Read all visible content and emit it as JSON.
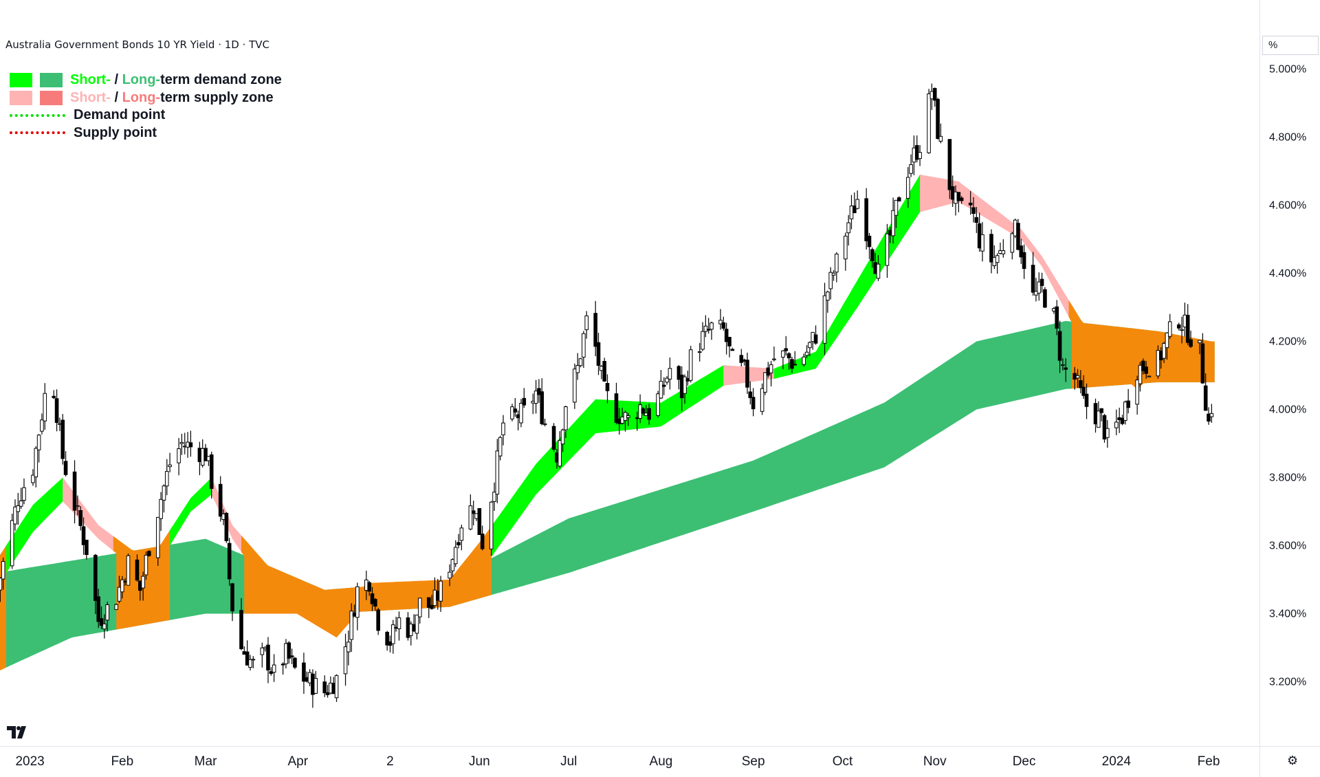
{
  "header": {
    "title": "Australia Government Bonds 10 YR Yield · 1D · TVC"
  },
  "legend": {
    "items": [
      {
        "short": "Short-",
        "sep": " / ",
        "long": "Long-",
        "rest": "term demand zone",
        "short_color": "#00ff00",
        "long_color": "#3cbf73"
      },
      {
        "short": "Short-",
        "sep": " / ",
        "long": "Long-",
        "rest": "term supply zone",
        "short_color": "#ffb3b3",
        "long_color": "#f77b7b"
      },
      {
        "label": "Demand point",
        "color": "#00e000"
      },
      {
        "label": "Supply point",
        "color": "#e00000"
      }
    ]
  },
  "price_axis": {
    "unit_label": "%"
  },
  "branding": {
    "logo": "tradingview-logo-icon"
  },
  "controls": {
    "settings_icon": "gear-icon"
  },
  "colors": {
    "demand_short": "#00ff00",
    "demand_long": "#3cbf73",
    "supply_short": "#ffb3b3",
    "supply_long": "#f77b7b",
    "overlap": "#f48a0c",
    "candle": "#000000"
  },
  "chart_data": {
    "type": "candlestick",
    "title": "Australia Government Bonds 10 YR Yield · 1D · TVC",
    "y_unit": "%",
    "ylim": [
      3.0,
      5.1
    ],
    "y_ticks": [
      3.2,
      3.4,
      3.6,
      3.8,
      4.0,
      4.2,
      4.4,
      4.6,
      4.8,
      5.0
    ],
    "y_tick_labels": [
      "3.200%",
      "3.400%",
      "3.600%",
      "3.800%",
      "4.000%",
      "4.200%",
      "4.400%",
      "4.600%",
      "4.800%",
      "5.000%"
    ],
    "x_range": [
      "2022-12-21",
      "2024-02-07"
    ],
    "x_ticks": [
      {
        "date": "2023-01-01",
        "label": "2023"
      },
      {
        "date": "2023-02-01",
        "label": "Feb"
      },
      {
        "date": "2023-03-01",
        "label": "Mar"
      },
      {
        "date": "2023-04-01",
        "label": "Apr"
      },
      {
        "date": "2023-05-02",
        "label": "2"
      },
      {
        "date": "2023-06-01",
        "label": "Jun"
      },
      {
        "date": "2023-07-01",
        "label": "Jul"
      },
      {
        "date": "2023-08-01",
        "label": "Aug"
      },
      {
        "date": "2023-09-01",
        "label": "Sep"
      },
      {
        "date": "2023-10-01",
        "label": "Oct"
      },
      {
        "date": "2023-11-01",
        "label": "Nov"
      },
      {
        "date": "2023-12-01",
        "label": "Dec"
      },
      {
        "date": "2024-01-01",
        "label": "2024"
      },
      {
        "date": "2024-02-01",
        "label": "Feb"
      }
    ],
    "close_path": [
      [
        "2022-12-21",
        3.47
      ],
      [
        "2022-12-28",
        3.74
      ],
      [
        "2023-01-02",
        3.83
      ],
      [
        "2023-01-06",
        4.04
      ],
      [
        "2023-01-09",
        4.06
      ],
      [
        "2023-01-12",
        3.86
      ],
      [
        "2023-01-16",
        3.72
      ],
      [
        "2023-01-20",
        3.59
      ],
      [
        "2023-01-24",
        3.38
      ],
      [
        "2023-01-30",
        3.45
      ],
      [
        "2023-02-03",
        3.55
      ],
      [
        "2023-02-07",
        3.47
      ],
      [
        "2023-02-10",
        3.6
      ],
      [
        "2023-02-14",
        3.74
      ],
      [
        "2023-02-17",
        3.84
      ],
      [
        "2023-02-21",
        3.9
      ],
      [
        "2023-02-24",
        3.89
      ],
      [
        "2023-03-01",
        3.87
      ],
      [
        "2023-03-03",
        3.79
      ],
      [
        "2023-03-07",
        3.67
      ],
      [
        "2023-03-10",
        3.42
      ],
      [
        "2023-03-13",
        3.3
      ],
      [
        "2023-03-17",
        3.25
      ],
      [
        "2023-03-21",
        3.28
      ],
      [
        "2023-03-24",
        3.22
      ],
      [
        "2023-03-28",
        3.28
      ],
      [
        "2023-04-01",
        3.22
      ],
      [
        "2023-04-05",
        3.2
      ],
      [
        "2023-04-10",
        3.17
      ],
      [
        "2023-04-14",
        3.21
      ],
      [
        "2023-04-18",
        3.34
      ],
      [
        "2023-04-21",
        3.47
      ],
      [
        "2023-04-25",
        3.5
      ],
      [
        "2023-04-28",
        3.38
      ],
      [
        "2023-05-02",
        3.32
      ],
      [
        "2023-05-05",
        3.38
      ],
      [
        "2023-05-09",
        3.35
      ],
      [
        "2023-05-12",
        3.43
      ],
      [
        "2023-05-16",
        3.42
      ],
      [
        "2023-05-19",
        3.47
      ],
      [
        "2023-05-23",
        3.57
      ],
      [
        "2023-05-26",
        3.67
      ],
      [
        "2023-05-30",
        3.72
      ],
      [
        "2023-06-02",
        3.61
      ],
      [
        "2023-06-06",
        3.79
      ],
      [
        "2023-06-09",
        3.96
      ],
      [
        "2023-06-13",
        3.98
      ],
      [
        "2023-06-16",
        3.99
      ],
      [
        "2023-06-20",
        4.05
      ],
      [
        "2023-06-23",
        3.96
      ],
      [
        "2023-06-27",
        3.87
      ],
      [
        "2023-06-30",
        4.02
      ],
      [
        "2023-07-04",
        4.12
      ],
      [
        "2023-07-07",
        4.26
      ],
      [
        "2023-07-10",
        4.18
      ],
      [
        "2023-07-13",
        4.05
      ],
      [
        "2023-07-17",
        3.99
      ],
      [
        "2023-07-21",
        3.97
      ],
      [
        "2023-07-25",
        4.01
      ],
      [
        "2023-07-28",
        3.99
      ],
      [
        "2023-08-01",
        4.05
      ],
      [
        "2023-08-04",
        4.12
      ],
      [
        "2023-08-08",
        4.05
      ],
      [
        "2023-08-11",
        4.15
      ],
      [
        "2023-08-15",
        4.21
      ],
      [
        "2023-08-18",
        4.24
      ],
      [
        "2023-08-22",
        4.23
      ],
      [
        "2023-08-25",
        4.14
      ],
      [
        "2023-08-29",
        4.11
      ],
      [
        "2023-09-01",
        4.02
      ],
      [
        "2023-09-05",
        4.1
      ],
      [
        "2023-09-08",
        4.15
      ],
      [
        "2023-09-12",
        4.16
      ],
      [
        "2023-09-15",
        4.13
      ],
      [
        "2023-09-19",
        4.17
      ],
      [
        "2023-09-22",
        4.22
      ],
      [
        "2023-09-26",
        4.35
      ],
      [
        "2023-09-29",
        4.43
      ],
      [
        "2023-10-03",
        4.55
      ],
      [
        "2023-10-06",
        4.62
      ],
      [
        "2023-10-10",
        4.5
      ],
      [
        "2023-10-13",
        4.4
      ],
      [
        "2023-10-17",
        4.51
      ],
      [
        "2023-10-20",
        4.63
      ],
      [
        "2023-10-24",
        4.73
      ],
      [
        "2023-10-27",
        4.78
      ],
      [
        "2023-10-31",
        4.94
      ],
      [
        "2023-11-02",
        4.82
      ],
      [
        "2023-11-06",
        4.66
      ],
      [
        "2023-11-09",
        4.58
      ],
      [
        "2023-11-13",
        4.6
      ],
      [
        "2023-11-16",
        4.5
      ],
      [
        "2023-11-20",
        4.44
      ],
      [
        "2023-11-23",
        4.46
      ],
      [
        "2023-11-27",
        4.55
      ],
      [
        "2023-11-30",
        4.47
      ],
      [
        "2023-12-04",
        4.33
      ],
      [
        "2023-12-07",
        4.35
      ],
      [
        "2023-12-11",
        4.27
      ],
      [
        "2023-12-14",
        4.12
      ],
      [
        "2023-12-18",
        4.09
      ],
      [
        "2023-12-21",
        4.02
      ],
      [
        "2023-12-27",
        3.97
      ],
      [
        "2023-12-29",
        3.91
      ],
      [
        "2024-01-03",
        3.98
      ],
      [
        "2024-01-08",
        4.12
      ],
      [
        "2024-01-11",
        4.13
      ],
      [
        "2024-01-15",
        4.14
      ],
      [
        "2024-01-18",
        4.21
      ],
      [
        "2024-01-22",
        4.27
      ],
      [
        "2024-01-25",
        4.23
      ],
      [
        "2024-01-29",
        4.17
      ],
      [
        "2024-02-01",
        3.96
      ],
      [
        "2024-02-02",
        4.01
      ]
    ],
    "zones": {
      "long_term_band": {
        "upper": [
          [
            "2022-12-21",
            3.52
          ],
          [
            "2023-03-01",
            3.62
          ],
          [
            "2023-04-10",
            3.47
          ],
          [
            "2023-05-22",
            3.5
          ],
          [
            "2023-07-01",
            3.68
          ],
          [
            "2023-09-01",
            3.85
          ],
          [
            "2023-10-15",
            4.02
          ],
          [
            "2023-11-15",
            4.2
          ],
          [
            "2023-12-15",
            4.26
          ],
          [
            "2024-01-15",
            4.23
          ],
          [
            "2024-02-02",
            4.2
          ]
        ],
        "lower": [
          [
            "2022-12-21",
            3.23
          ],
          [
            "2023-01-15",
            3.33
          ],
          [
            "2023-03-01",
            3.4
          ],
          [
            "2023-04-10",
            3.4
          ],
          [
            "2023-05-22",
            3.42
          ],
          [
            "2023-07-01",
            3.52
          ],
          [
            "2023-09-01",
            3.7
          ],
          [
            "2023-10-15",
            3.83
          ],
          [
            "2023-11-15",
            4.0
          ],
          [
            "2023-12-15",
            4.06
          ],
          [
            "2024-01-15",
            4.08
          ],
          [
            "2024-02-02",
            4.08
          ]
        ]
      },
      "short_term_band": {
        "upper": [
          [
            "2022-12-21",
            3.56
          ],
          [
            "2023-01-02",
            3.72
          ],
          [
            "2023-01-12",
            3.8
          ],
          [
            "2023-01-24",
            3.66
          ],
          [
            "2023-02-10",
            3.55
          ],
          [
            "2023-02-24",
            3.74
          ],
          [
            "2023-03-03",
            3.8
          ],
          [
            "2023-03-10",
            3.66
          ],
          [
            "2023-03-24",
            3.52
          ],
          [
            "2023-04-14",
            3.42
          ],
          [
            "2023-04-25",
            3.49
          ],
          [
            "2023-05-22",
            3.5
          ],
          [
            "2023-06-02",
            3.62
          ],
          [
            "2023-06-20",
            3.84
          ],
          [
            "2023-07-10",
            4.03
          ],
          [
            "2023-08-01",
            4.02
          ],
          [
            "2023-08-22",
            4.13
          ],
          [
            "2023-09-08",
            4.12
          ],
          [
            "2023-09-22",
            4.17
          ],
          [
            "2023-10-06",
            4.38
          ],
          [
            "2023-10-27",
            4.69
          ],
          [
            "2023-11-09",
            4.67
          ],
          [
            "2023-11-30",
            4.53
          ],
          [
            "2023-12-07",
            4.45
          ],
          [
            "2023-12-21",
            4.25
          ],
          [
            "2024-01-08",
            4.16
          ],
          [
            "2024-01-22",
            4.2
          ],
          [
            "2024-02-02",
            4.17
          ]
        ],
        "lower": [
          [
            "2022-12-21",
            3.48
          ],
          [
            "2023-01-02",
            3.64
          ],
          [
            "2023-01-12",
            3.73
          ],
          [
            "2023-01-24",
            3.62
          ],
          [
            "2023-02-10",
            3.5
          ],
          [
            "2023-02-24",
            3.7
          ],
          [
            "2023-03-03",
            3.75
          ],
          [
            "2023-03-10",
            3.62
          ],
          [
            "2023-03-24",
            3.44
          ],
          [
            "2023-04-14",
            3.33
          ],
          [
            "2023-04-25",
            3.44
          ],
          [
            "2023-05-22",
            3.42
          ],
          [
            "2023-06-02",
            3.53
          ],
          [
            "2023-06-20",
            3.75
          ],
          [
            "2023-07-10",
            3.93
          ],
          [
            "2023-08-01",
            3.95
          ],
          [
            "2023-08-22",
            4.07
          ],
          [
            "2023-09-08",
            4.09
          ],
          [
            "2023-09-22",
            4.12
          ],
          [
            "2023-10-06",
            4.3
          ],
          [
            "2023-10-27",
            4.58
          ],
          [
            "2023-11-09",
            4.61
          ],
          [
            "2023-11-30",
            4.5
          ],
          [
            "2023-12-07",
            4.42
          ],
          [
            "2023-12-21",
            4.19
          ],
          [
            "2024-01-08",
            4.06
          ],
          [
            "2024-01-22",
            4.17
          ],
          [
            "2024-02-02",
            4.13
          ]
        ]
      }
    }
  }
}
